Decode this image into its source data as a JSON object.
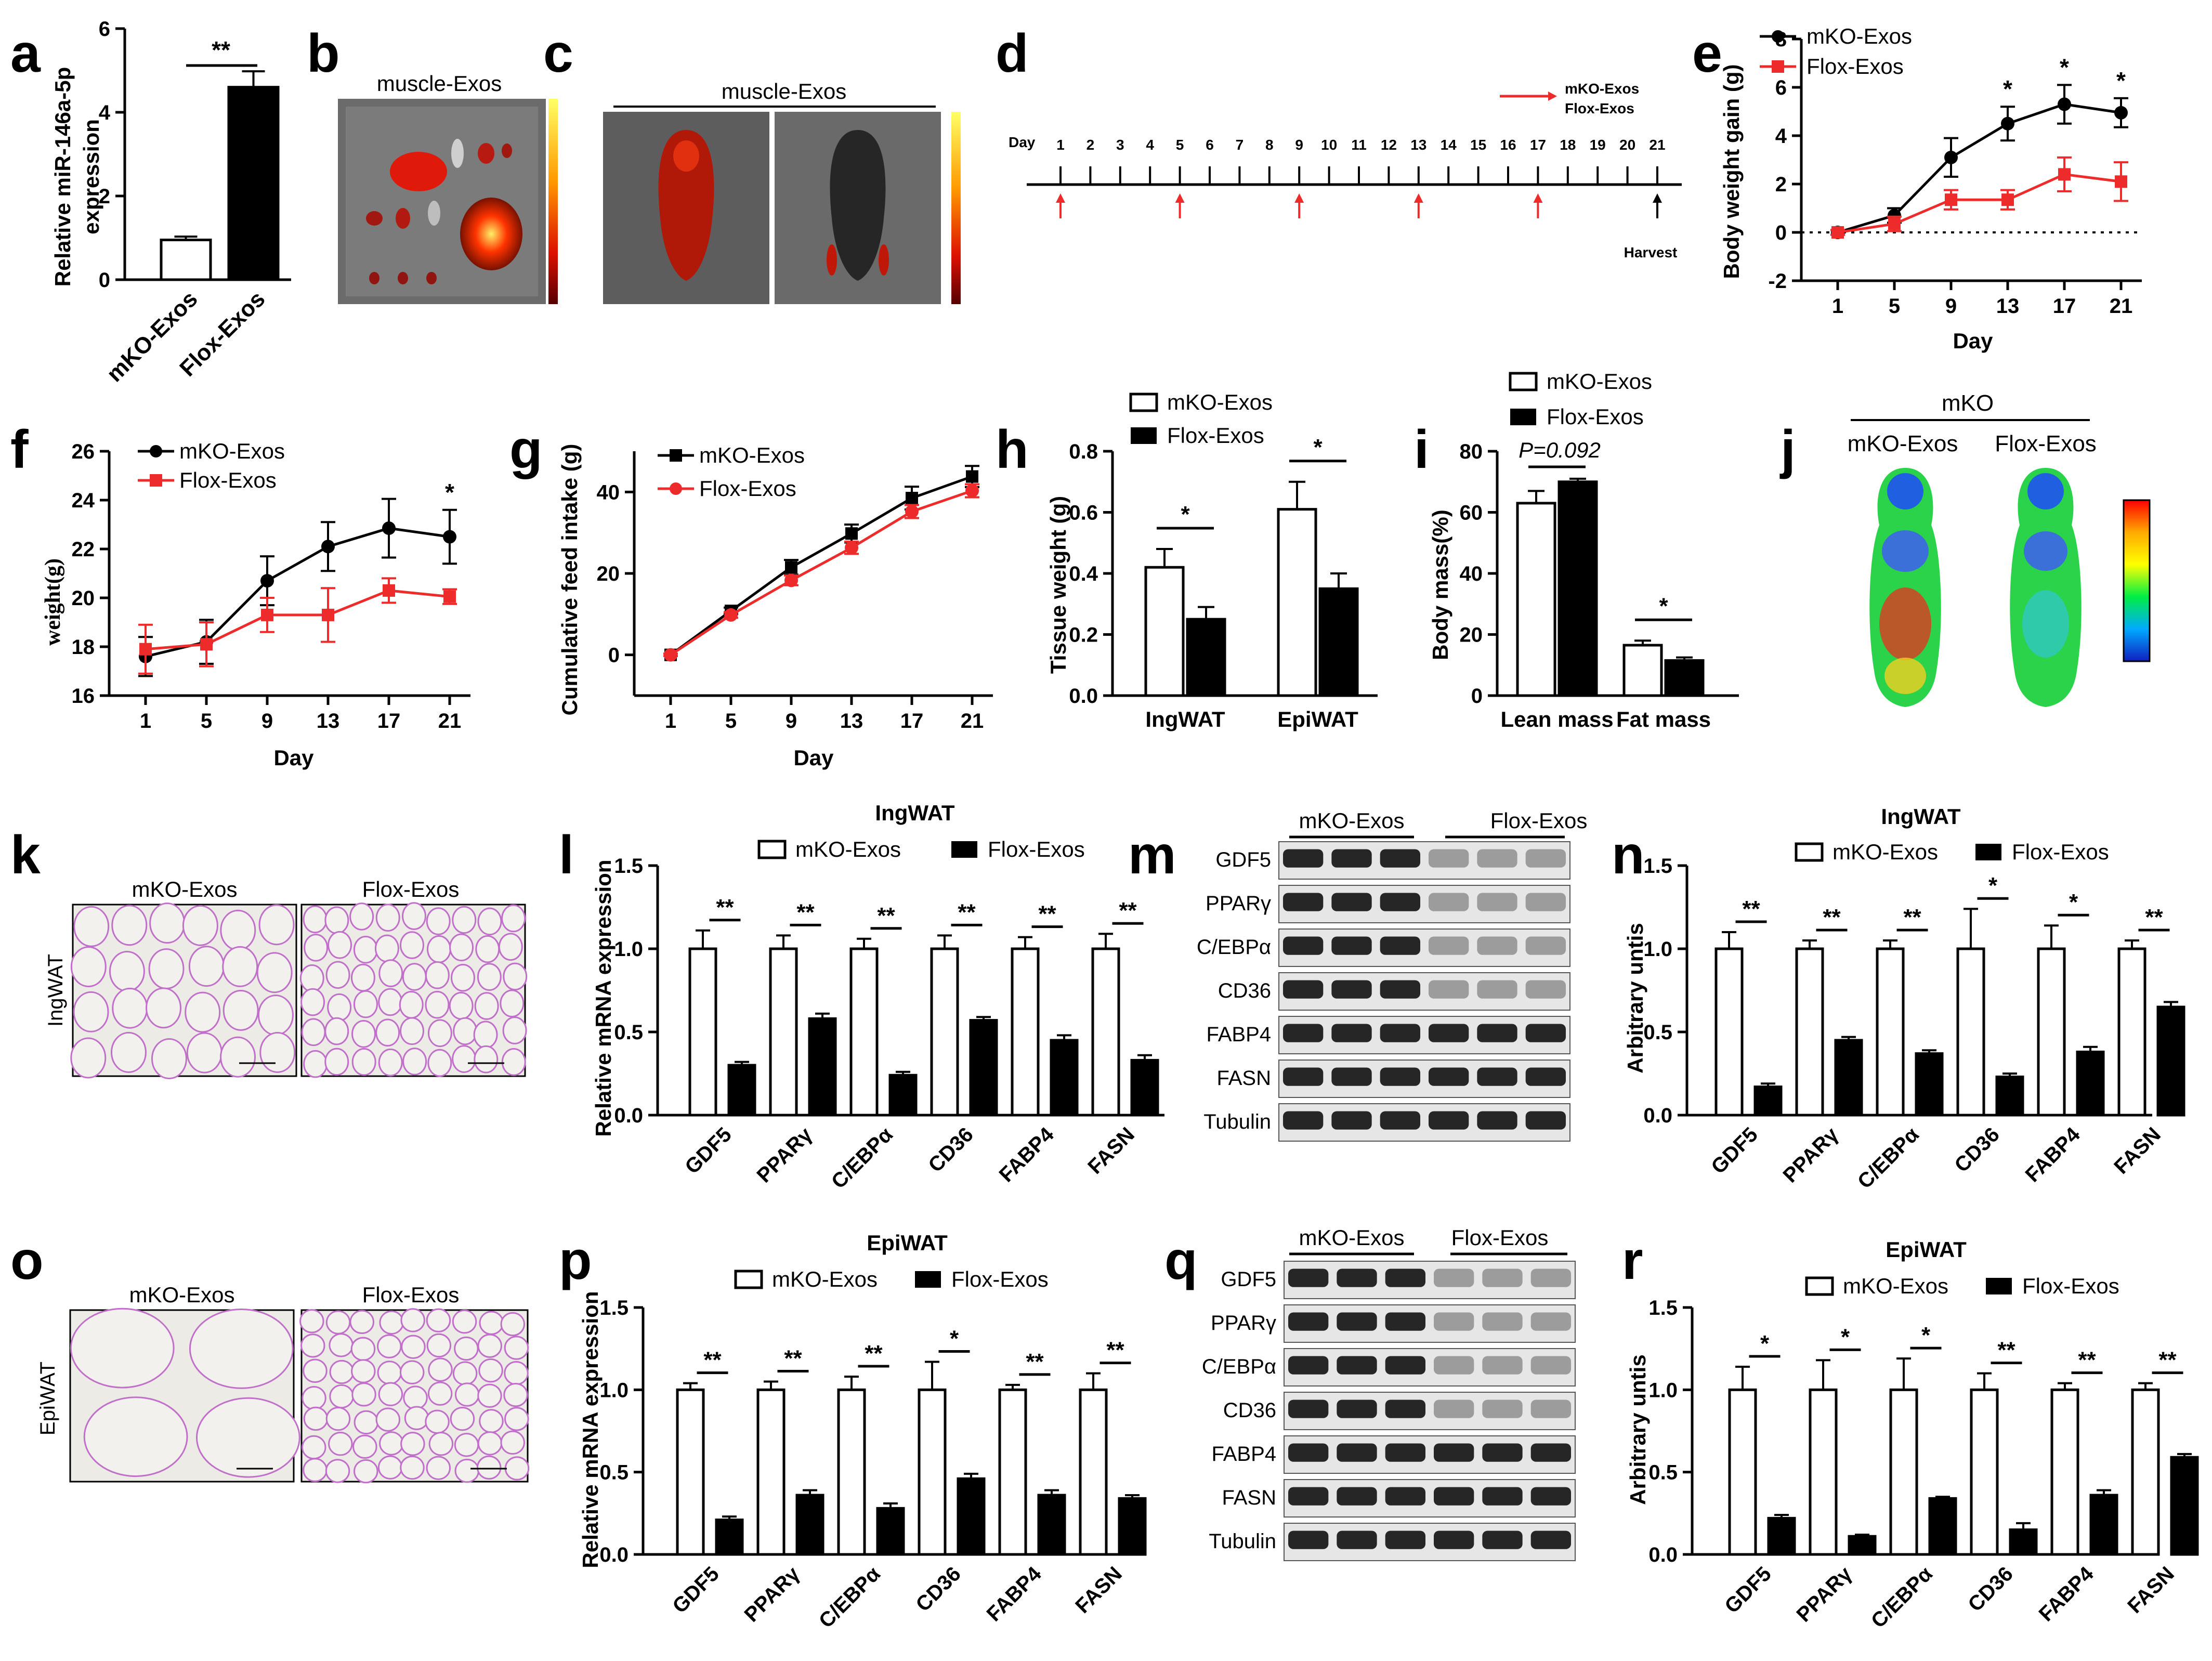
{
  "colors": {
    "black": "#000000",
    "red": "#ee2b2b",
    "white": "#ffffff",
    "gray": "#7a7a7a"
  },
  "legend": {
    "mko": "mKO-Exos",
    "flox": "Flox-Exos"
  },
  "panels": {
    "a": {
      "letter": "a",
      "ylabel_1": "Relative miR-146a-5p",
      "ylabel_2": "expression",
      "sig": "**"
    },
    "b": {
      "letter": "b",
      "title": "muscle-Exos"
    },
    "c": {
      "letter": "c",
      "title": "muscle-Exos"
    },
    "d": {
      "letter": "d",
      "day_label": "Day",
      "harvest": "Harvest",
      "legend_1": "mKO-Exos",
      "legend_2": "Flox-Exos",
      "days": [
        "1",
        "2",
        "3",
        "4",
        "5",
        "6",
        "7",
        "8",
        "9",
        "10",
        "11",
        "12",
        "13",
        "14",
        "15",
        "16",
        "17",
        "18",
        "19",
        "20",
        "21"
      ],
      "injection_days": [
        1,
        5,
        9,
        13,
        17
      ]
    },
    "e": {
      "letter": "e",
      "xlabel": "Day",
      "ylabel": "Body weight gain (g)",
      "sig": "*"
    },
    "f": {
      "letter": "f",
      "xlabel": "Day",
      "ylabel": "weight(g)",
      "sig": "*"
    },
    "g": {
      "letter": "g",
      "xlabel": "Day",
      "ylabel": "Cumulative feed intake (g)"
    },
    "h": {
      "letter": "h",
      "ylabel": "Tissue weight (g)",
      "sig": "*"
    },
    "i": {
      "letter": "i",
      "ylabel": "Body mass(%)",
      "pval": "P=0.092",
      "sig": "*"
    },
    "j": {
      "letter": "j",
      "group": "mKO",
      "label_1": "mKO-Exos",
      "label_2": "Flox-Exos"
    },
    "k": {
      "letter": "k",
      "side": "IngWAT",
      "label_1": "mKO-Exos",
      "label_2": "Flox-Exos"
    },
    "l": {
      "letter": "l",
      "title": "IngWAT",
      "ylabel": "Relative mRNA expression",
      "sigs": [
        "**",
        "**",
        "**",
        "**",
        "**",
        "**"
      ]
    },
    "m": {
      "letter": "m",
      "group_1": "mKO-Exos",
      "group_2": "Flox-Exos",
      "rows": [
        "GDF5",
        "PPARγ",
        "C/EBPα",
        "CD36",
        "FABP4",
        "FASN",
        "Tubulin"
      ]
    },
    "n": {
      "letter": "n",
      "title": "IngWAT",
      "ylabel": "Arbitrary untis",
      "sigs": [
        "**",
        "**",
        "**",
        "*",
        "*",
        "**"
      ]
    },
    "o": {
      "letter": "o",
      "side": "EpiWAT",
      "label_1": "mKO-Exos",
      "label_2": "Flox-Exos"
    },
    "p": {
      "letter": "p",
      "title": "EpiWAT",
      "ylabel": "Relative mRNA expression",
      "sigs": [
        "**",
        "**",
        "**",
        "*",
        "**",
        "**"
      ]
    },
    "q": {
      "letter": "q",
      "group_1": "mKO-Exos",
      "group_2": "Flox-Exos",
      "rows": [
        "GDF5",
        "PPARγ",
        "C/EBPα",
        "CD36",
        "FABP4",
        "FASN",
        "Tubulin"
      ]
    },
    "r": {
      "letter": "r",
      "title": "EpiWAT",
      "ylabel": "Arbitrary untis",
      "sigs": [
        "*",
        "*",
        "*",
        "**",
        "**",
        "**"
      ]
    }
  },
  "chart_data": [
    {
      "id": "a",
      "type": "bar",
      "categories": [
        "mKO-Exos",
        "Flox-Exos"
      ],
      "values": [
        0.95,
        4.6
      ],
      "errors": [
        0.08,
        0.38
      ],
      "ylim": [
        0,
        6
      ],
      "yticks": [
        0,
        2,
        4,
        6
      ],
      "ylabel": "Relative miR-146a-5p expression"
    },
    {
      "id": "e",
      "type": "line",
      "x": [
        1,
        5,
        9,
        13,
        17,
        21
      ],
      "ylim": [
        -2,
        8
      ],
      "yticks": [
        -2,
        0,
        2,
        4,
        6,
        8
      ],
      "xlabel": "Day",
      "ylabel": "Body weight gain (g)",
      "series": [
        {
          "name": "mKO-Exos",
          "values": [
            0,
            0.7,
            3.1,
            4.5,
            5.3,
            4.95
          ],
          "errors": [
            0.1,
            0.3,
            0.8,
            0.7,
            0.8,
            0.6
          ]
        },
        {
          "name": "Flox-Exos",
          "values": [
            0,
            0.35,
            1.35,
            1.35,
            2.4,
            2.1
          ],
          "errors": [
            0.1,
            0.3,
            0.4,
            0.4,
            0.7,
            0.8
          ]
        }
      ],
      "sig_at": [
        13,
        17,
        21
      ]
    },
    {
      "id": "f",
      "type": "line",
      "x": [
        1,
        5,
        9,
        13,
        17,
        21
      ],
      "ylim": [
        16,
        26
      ],
      "yticks": [
        16,
        18,
        20,
        22,
        24,
        26
      ],
      "xlabel": "Day",
      "ylabel": "weight(g)",
      "series": [
        {
          "name": "mKO-Exos",
          "values": [
            17.6,
            18.2,
            20.7,
            22.1,
            22.85,
            22.5
          ],
          "errors": [
            0.8,
            0.9,
            1.0,
            1.0,
            1.2,
            1.1
          ]
        },
        {
          "name": "Flox-Exos",
          "values": [
            17.9,
            18.1,
            19.3,
            19.3,
            20.3,
            20.05
          ],
          "errors": [
            1.0,
            0.9,
            0.7,
            1.1,
            0.5,
            0.3
          ]
        }
      ],
      "sig_at": [
        21
      ]
    },
    {
      "id": "g",
      "type": "line",
      "x": [
        1,
        5,
        9,
        13,
        17,
        21
      ],
      "ylim": [
        -10,
        50
      ],
      "yticks": [
        0,
        20,
        40
      ],
      "xlabel": "Day",
      "ylabel": "Cumulative feed intake (g)",
      "series": [
        {
          "name": "mKO-Exos",
          "values": [
            0,
            10.8,
            21.5,
            29.8,
            38.5,
            43.8
          ],
          "errors": [
            0.3,
            0.8,
            1.8,
            2.2,
            2.8,
            2.6
          ]
        },
        {
          "name": "Flox-Exos",
          "values": [
            0,
            9.8,
            18.3,
            26.3,
            35.2,
            40.3
          ],
          "errors": [
            0.3,
            0.7,
            1.2,
            1.5,
            1.6,
            1.6
          ]
        }
      ]
    },
    {
      "id": "h",
      "type": "bar",
      "categories": [
        "IngWAT",
        "EpiWAT"
      ],
      "ylim": [
        0,
        0.8
      ],
      "yticks": [
        0.0,
        0.2,
        0.4,
        0.6,
        0.8
      ],
      "ylabel": "Tissue weight (g)",
      "series": [
        {
          "name": "mKO-Exos",
          "values": [
            0.42,
            0.61
          ],
          "errors": [
            0.06,
            0.09
          ]
        },
        {
          "name": "Flox-Exos",
          "values": [
            0.25,
            0.35
          ],
          "errors": [
            0.04,
            0.05
          ]
        }
      ]
    },
    {
      "id": "i",
      "type": "bar",
      "categories": [
        "Lean mass",
        "Fat mass"
      ],
      "ylim": [
        0,
        80
      ],
      "yticks": [
        0,
        20,
        40,
        60,
        80
      ],
      "ylabel": "Body mass(%)",
      "series": [
        {
          "name": "mKO-Exos",
          "values": [
            63,
            16.5
          ],
          "errors": [
            4,
            1.5
          ]
        },
        {
          "name": "Flox-Exos",
          "values": [
            70,
            11.5
          ],
          "errors": [
            1,
            1
          ]
        }
      ]
    },
    {
      "id": "l",
      "type": "bar",
      "title": "IngWAT",
      "categories": [
        "GDF5",
        "PPARγ",
        "C/EBPα",
        "CD36",
        "FABP4",
        "FASN"
      ],
      "ylim": [
        0,
        1.5
      ],
      "yticks": [
        0.0,
        0.5,
        1.0,
        1.5
      ],
      "ylabel": "Relative mRNA expression",
      "series": [
        {
          "name": "mKO-Exos",
          "values": [
            1,
            1,
            1,
            1,
            1,
            1
          ],
          "errors": [
            0.11,
            0.08,
            0.06,
            0.08,
            0.07,
            0.09
          ]
        },
        {
          "name": "Flox-Exos",
          "values": [
            0.3,
            0.58,
            0.24,
            0.57,
            0.45,
            0.33
          ],
          "errors": [
            0.02,
            0.03,
            0.02,
            0.02,
            0.03,
            0.03
          ]
        }
      ]
    },
    {
      "id": "n",
      "type": "bar",
      "title": "IngWAT",
      "categories": [
        "GDF5",
        "PPARγ",
        "C/EBPα",
        "CD36",
        "FABP4",
        "FASN"
      ],
      "ylim": [
        0,
        1.5
      ],
      "yticks": [
        0.0,
        0.5,
        1.0,
        1.5
      ],
      "ylabel": "Arbitrary untis",
      "series": [
        {
          "name": "mKO-Exos",
          "values": [
            1,
            1,
            1,
            1,
            1,
            1
          ],
          "errors": [
            0.1,
            0.05,
            0.05,
            0.24,
            0.14,
            0.05
          ]
        },
        {
          "name": "Flox-Exos",
          "values": [
            0.17,
            0.45,
            0.37,
            0.23,
            0.38,
            0.65
          ],
          "errors": [
            0.02,
            0.02,
            0.02,
            0.02,
            0.03,
            0.03
          ]
        }
      ]
    },
    {
      "id": "p",
      "type": "bar",
      "title": "EpiWAT",
      "categories": [
        "GDF5",
        "PPARγ",
        "C/EBPα",
        "CD36",
        "FABP4",
        "FASN"
      ],
      "ylim": [
        0,
        1.5
      ],
      "yticks": [
        0.0,
        0.5,
        1.0,
        1.5
      ],
      "ylabel": "Relative mRNA expression",
      "series": [
        {
          "name": "mKO-Exos",
          "values": [
            1,
            1,
            1,
            1,
            1,
            1
          ],
          "errors": [
            0.04,
            0.05,
            0.08,
            0.17,
            0.03,
            0.1
          ]
        },
        {
          "name": "Flox-Exos",
          "values": [
            0.21,
            0.36,
            0.28,
            0.46,
            0.36,
            0.34
          ],
          "errors": [
            0.02,
            0.03,
            0.03,
            0.03,
            0.03,
            0.02
          ]
        }
      ]
    },
    {
      "id": "r",
      "type": "bar",
      "title": "EpiWAT",
      "categories": [
        "GDF5",
        "PPARγ",
        "C/EBPα",
        "CD36",
        "FABP4",
        "FASN"
      ],
      "ylim": [
        0,
        1.5
      ],
      "yticks": [
        0.0,
        0.5,
        1.0,
        1.5
      ],
      "ylabel": "Arbitrary untis",
      "series": [
        {
          "name": "mKO-Exos",
          "values": [
            1,
            1,
            1,
            1,
            1,
            1
          ],
          "errors": [
            0.14,
            0.18,
            0.19,
            0.1,
            0.04,
            0.04
          ]
        },
        {
          "name": "Flox-Exos",
          "values": [
            0.22,
            0.11,
            0.34,
            0.15,
            0.36,
            0.59
          ],
          "errors": [
            0.02,
            0.01,
            0.01,
            0.04,
            0.03,
            0.02
          ]
        }
      ]
    }
  ]
}
